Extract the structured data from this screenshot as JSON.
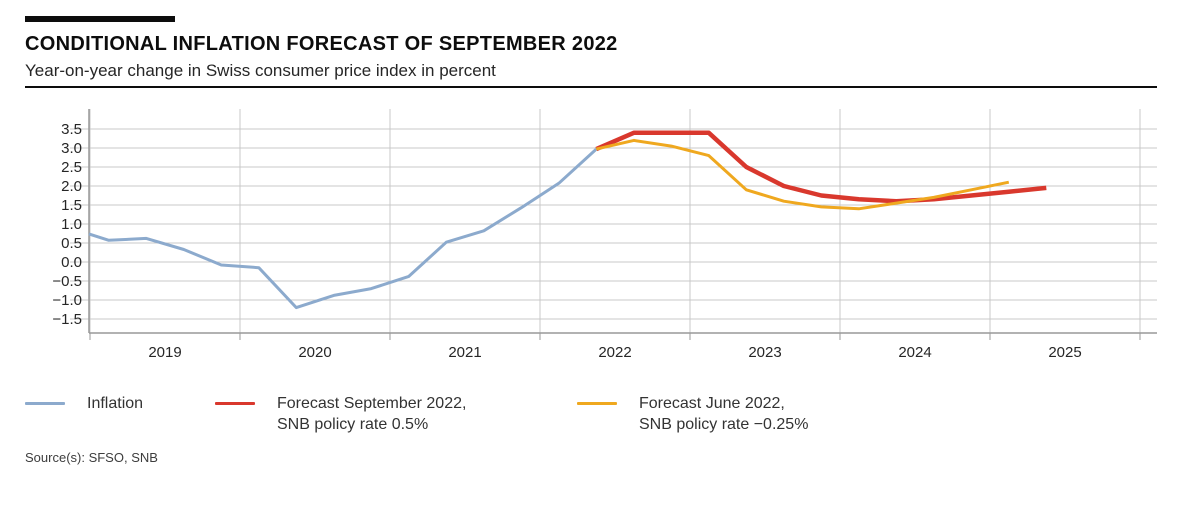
{
  "header": {
    "title": "CONDITIONAL INFLATION FORECAST OF SEPTEMBER 2022",
    "subtitle": "Year-on-year change in Swiss consumer price index in percent"
  },
  "source_line": "Source(s): SFSO, SNB",
  "colors": {
    "inflation": "#8caacd",
    "forecast_sep": "#d9382d",
    "forecast_jun": "#efa81f",
    "grid": "#c9c9c9",
    "axis": "#999999",
    "tick_text": "#262626"
  },
  "legend": [
    {
      "series": "inflation",
      "label_lines": [
        "Inflation",
        ""
      ]
    },
    {
      "series": "forecast_sep",
      "label_lines": [
        "Forecast September 2022,",
        "SNB policy rate 0.5%"
      ]
    },
    {
      "series": "forecast_jun",
      "label_lines": [
        "Forecast June 2022,",
        "SNB policy rate −0.25%"
      ]
    }
  ],
  "chart_data": {
    "type": "line",
    "title": "Conditional inflation forecast of September 2022",
    "ylabel": "Year-on-year change in Swiss consumer price index in percent",
    "ylim": [
      -1.5,
      3.5
    ],
    "y_tick_step": 0.5,
    "grid": true,
    "legend_position": "bottom",
    "y_ticks": [
      3.5,
      3.0,
      2.5,
      2.0,
      1.5,
      1.0,
      0.5,
      0.0,
      -0.5,
      -1.0,
      -1.5
    ],
    "y_tick_labels": [
      "3.5",
      "3.0",
      "2.5",
      "2.0",
      "1.5",
      "1.0",
      "0.5",
      "0.0",
      "−0.5",
      "−1.0",
      "−1.5"
    ],
    "x_grid_years": [
      2019,
      2020,
      2021,
      2022,
      2023,
      2024,
      2025,
      2026
    ],
    "x_tick_labels": [
      "2019",
      "2020",
      "2021",
      "2022",
      "2023",
      "2024",
      "2025"
    ],
    "x_unit": "quarterly, decimal years (quarter midpoints)",
    "series": [
      {
        "key": "inflation",
        "name": "Inflation",
        "points": [
          [
            2018.993,
            0.74
          ],
          [
            2019.125,
            0.57
          ],
          [
            2019.375,
            0.62
          ],
          [
            2019.625,
            0.33
          ],
          [
            2019.875,
            -0.08
          ],
          [
            2020.125,
            -0.15
          ],
          [
            2020.375,
            -1.2
          ],
          [
            2020.625,
            -0.88
          ],
          [
            2020.875,
            -0.7
          ],
          [
            2021.125,
            -0.38
          ],
          [
            2021.375,
            0.52
          ],
          [
            2021.625,
            0.82
          ],
          [
            2021.875,
            1.43
          ],
          [
            2022.125,
            2.07
          ],
          [
            2022.375,
            2.97
          ]
        ]
      },
      {
        "key": "forecast_sep",
        "name": "Forecast September 2022, SNB policy rate 0.5%",
        "points": [
          [
            2022.375,
            2.97
          ],
          [
            2022.625,
            3.4
          ],
          [
            2022.875,
            3.4
          ],
          [
            2023.125,
            3.4
          ],
          [
            2023.375,
            2.5
          ],
          [
            2023.625,
            2.0
          ],
          [
            2023.875,
            1.75
          ],
          [
            2024.125,
            1.65
          ],
          [
            2024.375,
            1.6
          ],
          [
            2024.625,
            1.65
          ],
          [
            2024.875,
            1.75
          ],
          [
            2025.125,
            1.85
          ],
          [
            2025.375,
            1.95
          ]
        ]
      },
      {
        "key": "forecast_jun",
        "name": "Forecast June 2022, SNB policy rate −0.25%",
        "points": [
          [
            2022.375,
            2.97
          ],
          [
            2022.625,
            3.2
          ],
          [
            2022.875,
            3.05
          ],
          [
            2023.125,
            2.8
          ],
          [
            2023.375,
            1.9
          ],
          [
            2023.625,
            1.6
          ],
          [
            2023.875,
            1.45
          ],
          [
            2024.125,
            1.4
          ],
          [
            2024.375,
            1.55
          ],
          [
            2024.625,
            1.7
          ],
          [
            2024.875,
            1.9
          ],
          [
            2025.125,
            2.1
          ]
        ]
      }
    ]
  }
}
